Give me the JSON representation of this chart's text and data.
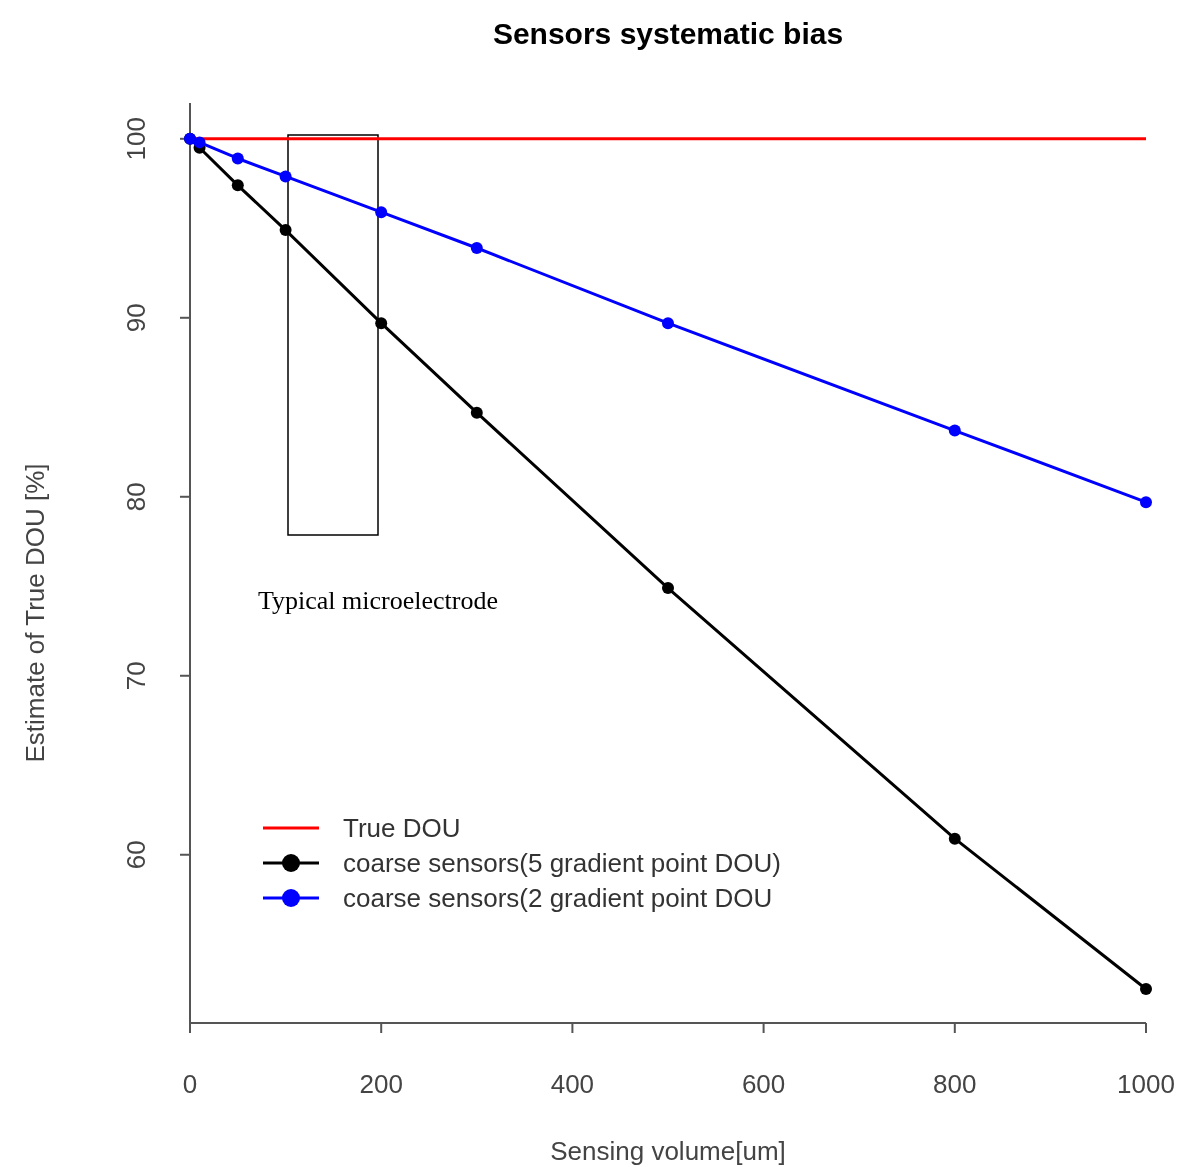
{
  "chart_data": {
    "type": "line",
    "title": "Sensors systematic bias",
    "xlabel": "Sensing volume[um]",
    "ylabel": "Estimate of True DOU [%]",
    "xlim": [
      0,
      1000
    ],
    "xticks": [
      0,
      200,
      400,
      600,
      800,
      1000
    ],
    "ylim": [
      50.6,
      102
    ],
    "yticks": [
      60,
      70,
      80,
      90,
      100
    ],
    "x": [
      0,
      10,
      50,
      100,
      200,
      300,
      500,
      800,
      1000
    ],
    "series": [
      {
        "name": "coarse sensors(5 gradient point DOU)",
        "color": "#000000",
        "values": [
          100,
          99.5,
          97.4,
          94.9,
          89.7,
          84.7,
          74.9,
          60.9,
          52.5
        ]
      },
      {
        "name": "coarse sensors(2 gradient point DOU",
        "color": "#0000ff",
        "values": [
          100,
          99.8,
          98.9,
          97.9,
          95.9,
          93.9,
          89.7,
          83.7,
          79.7
        ]
      }
    ],
    "ref_lines": [
      {
        "axis": "y",
        "value": 100,
        "label": "True DOU",
        "color": "#ff0000"
      }
    ],
    "annotations": [
      "Typical microelectrode"
    ],
    "marker": "circle",
    "line_style": "solid",
    "grid": false,
    "legend": "bottom left"
  }
}
